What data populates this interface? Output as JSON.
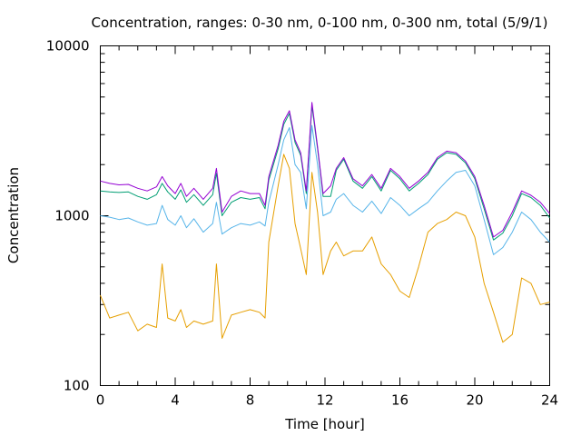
{
  "chart_data": {
    "type": "line",
    "title": "Concentration, ranges: 0-30 nm, 0-100 nm, 0-300 nm, total (5/9/1)",
    "xlabel": "Time [hour]",
    "ylabel": "Concentration",
    "xlim": [
      0,
      24
    ],
    "ylim": [
      100,
      10000
    ],
    "yscale": "log",
    "grid": false,
    "legend": "none",
    "x_ticks": [
      "0",
      "4",
      "8",
      "12",
      "16",
      "20",
      "24"
    ],
    "y_ticks": [
      "100",
      "1000",
      "10000"
    ],
    "x": [
      0,
      0.5,
      1,
      1.5,
      2,
      2.5,
      3,
      3.3,
      3.6,
      4,
      4.3,
      4.6,
      5,
      5.5,
      6,
      6.2,
      6.5,
      7,
      7.5,
      8,
      8.5,
      8.8,
      9,
      9.5,
      9.8,
      10.1,
      10.4,
      10.7,
      11,
      11.3,
      11.6,
      11.9,
      12.3,
      12.6,
      13,
      13.5,
      14,
      14.5,
      15,
      15.5,
      16,
      16.5,
      17,
      17.5,
      18,
      18.5,
      19,
      19.5,
      20,
      20.5,
      21,
      21.5,
      22,
      22.5,
      23,
      23.5,
      24
    ],
    "series": [
      {
        "color": "#9400d3",
        "values": [
          1600,
          1550,
          1520,
          1530,
          1450,
          1400,
          1480,
          1700,
          1500,
          1350,
          1550,
          1300,
          1450,
          1250,
          1450,
          1900,
          1050,
          1300,
          1400,
          1350,
          1350,
          1150,
          1700,
          2600,
          3600,
          4150,
          2800,
          2350,
          1400,
          4650,
          2550,
          1350,
          1500,
          1900,
          2200,
          1650,
          1500,
          1750,
          1450,
          1900,
          1700,
          1450,
          1600,
          1800,
          2200,
          2400,
          2350,
          2100,
          1700,
          1150,
          750,
          820,
          1050,
          1400,
          1320,
          1200,
          1030
        ]
      },
      {
        "color": "#009e73",
        "values": [
          1400,
          1380,
          1370,
          1380,
          1300,
          1250,
          1330,
          1550,
          1380,
          1250,
          1420,
          1200,
          1330,
          1150,
          1330,
          1780,
          1000,
          1200,
          1280,
          1250,
          1280,
          1100,
          1620,
          2480,
          3450,
          4000,
          2700,
          2270,
          1350,
          4450,
          2480,
          1300,
          1300,
          1850,
          2150,
          1600,
          1450,
          1700,
          1400,
          1850,
          1650,
          1400,
          1550,
          1750,
          2150,
          2350,
          2300,
          2050,
          1650,
          1100,
          720,
          790,
          1000,
          1350,
          1280,
          1150,
          970
        ]
      },
      {
        "color": "#56b4e9",
        "values": [
          1000,
          980,
          950,
          970,
          920,
          880,
          900,
          1150,
          950,
          880,
          1000,
          850,
          960,
          800,
          900,
          1200,
          780,
          850,
          900,
          880,
          920,
          870,
          1200,
          2000,
          2800,
          3300,
          2000,
          1800,
          1100,
          3400,
          2000,
          1000,
          1050,
          1250,
          1350,
          1150,
          1050,
          1220,
          1030,
          1280,
          1150,
          1000,
          1100,
          1200,
          1400,
          1600,
          1800,
          1850,
          1500,
          950,
          590,
          650,
          800,
          1050,
          950,
          800,
          700
        ]
      },
      {
        "color": "#e69f00",
        "values": [
          340,
          250,
          260,
          270,
          210,
          230,
          220,
          520,
          250,
          240,
          280,
          220,
          240,
          230,
          240,
          520,
          190,
          260,
          270,
          280,
          270,
          250,
          700,
          1500,
          2300,
          1900,
          900,
          640,
          450,
          1800,
          1050,
          450,
          620,
          700,
          580,
          620,
          620,
          750,
          520,
          450,
          360,
          330,
          500,
          800,
          900,
          950,
          1050,
          1000,
          750,
          400,
          270,
          180,
          200,
          430,
          400,
          300,
          310
        ]
      }
    ]
  }
}
